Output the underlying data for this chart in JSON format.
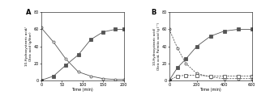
{
  "panel_A": {
    "time": [
      0,
      30,
      60,
      90,
      120,
      150,
      180,
      200
    ],
    "oleic_acid": [
      62,
      45,
      25,
      10,
      5,
      2,
      1,
      1
    ],
    "hsa": [
      0,
      5,
      18,
      30,
      48,
      57,
      60,
      60
    ]
  },
  "panel_B": {
    "time": [
      0,
      60,
      120,
      200,
      300,
      400,
      500,
      600
    ],
    "oleic_acid": [
      60,
      38,
      20,
      8,
      4,
      2,
      2,
      2
    ],
    "palmitic_acid": [
      0,
      5,
      6,
      6,
      5,
      5,
      5,
      5
    ],
    "hsa": [
      0,
      15,
      25,
      40,
      52,
      58,
      60,
      60
    ]
  },
  "ylim": [
    0,
    80
  ],
  "yticks": [
    0,
    20,
    40,
    60,
    80
  ],
  "A_xlim": [
    0,
    200
  ],
  "A_xticks": [
    0,
    50,
    100,
    150,
    200
  ],
  "B_xlim": [
    0,
    600
  ],
  "B_xticks": [
    0,
    200,
    400,
    600
  ],
  "xlabel": "Time (min)",
  "ylabel_A": "10-Hydroxystearic acid/\nOleic acid (g/liter)",
  "ylabel_B": "10-Hydroxystearic acid/\nOleic acid, Palmitic acid (g l⁻¹)",
  "color_line": "#555555",
  "label_A": "A",
  "label_B": "B"
}
